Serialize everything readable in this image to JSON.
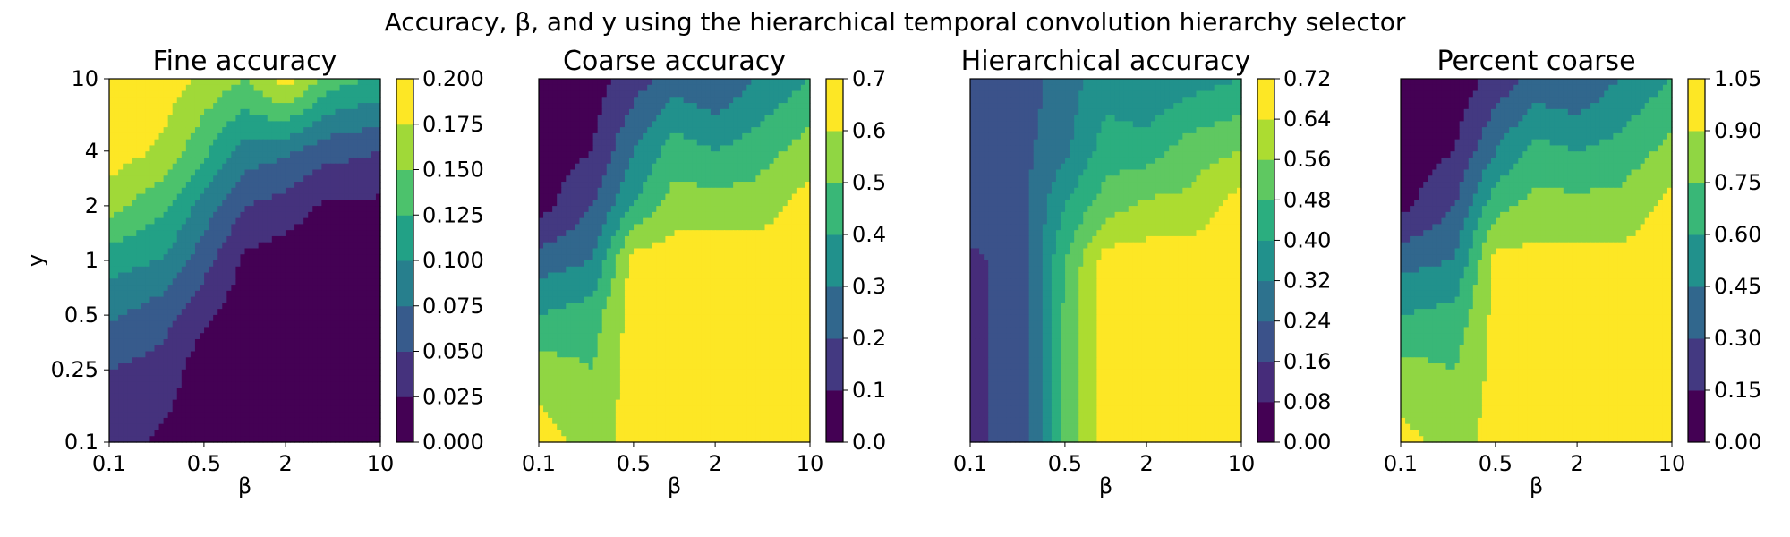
{
  "figure_title": "Accuracy, β, and y using the hierarchical temporal convolution hierarchy selector",
  "chart_data": [
    {
      "type": "heatmap",
      "subtype": "filled-contour",
      "title": "Fine accuracy",
      "xlabel": "β",
      "ylabel": "y",
      "x": [
        0.1,
        0.25,
        0.5,
        1,
        2,
        4,
        10
      ],
      "y": [
        0.1,
        0.25,
        0.5,
        1,
        2,
        4,
        10
      ],
      "xticks": [
        "0.1",
        "0.5",
        "2",
        "10"
      ],
      "yticks": [
        "0.1",
        "0.25",
        "0.5",
        "1",
        "2",
        "4",
        "10"
      ],
      "levels": [
        0.0,
        0.025,
        0.05,
        0.075,
        0.1,
        0.125,
        0.15,
        0.175,
        0.2
      ],
      "colorbar_ticks": [
        "0.000",
        "0.025",
        "0.050",
        "0.075",
        "0.100",
        "0.125",
        "0.150",
        "0.175",
        "0.200"
      ],
      "z": [
        [
          0.04,
          0.02,
          0.01,
          0.01,
          0.01,
          0.01,
          0.01
        ],
        [
          0.05,
          0.04,
          0.01,
          0.01,
          0.01,
          0.01,
          0.01
        ],
        [
          0.08,
          0.06,
          0.03,
          0.01,
          0.01,
          0.01,
          0.01
        ],
        [
          0.11,
          0.1,
          0.06,
          0.02,
          0.01,
          0.01,
          0.01
        ],
        [
          0.16,
          0.13,
          0.09,
          0.05,
          0.04,
          0.02,
          0.02
        ],
        [
          0.19,
          0.17,
          0.13,
          0.09,
          0.08,
          0.06,
          0.05
        ],
        [
          0.19,
          0.19,
          0.17,
          0.15,
          0.19,
          0.14,
          0.12
        ]
      ]
    },
    {
      "type": "heatmap",
      "subtype": "filled-contour",
      "title": "Coarse accuracy",
      "xlabel": "β",
      "ylabel": "",
      "x": [
        0.1,
        0.25,
        0.5,
        1,
        2,
        4,
        10
      ],
      "y": [
        0.1,
        0.25,
        0.5,
        1,
        2,
        4,
        10
      ],
      "xticks": [
        "0.1",
        "0.5",
        "2",
        "10"
      ],
      "yticks": [],
      "levels": [
        0.0,
        0.1,
        0.2,
        0.3,
        0.4,
        0.5,
        0.6,
        0.7
      ],
      "colorbar_ticks": [
        "0.0",
        "0.1",
        "0.2",
        "0.3",
        "0.4",
        "0.5",
        "0.6",
        "0.7"
      ],
      "z": [
        [
          0.65,
          0.55,
          0.65,
          0.65,
          0.65,
          0.65,
          0.65
        ],
        [
          0.55,
          0.5,
          0.65,
          0.65,
          0.65,
          0.65,
          0.65
        ],
        [
          0.4,
          0.45,
          0.65,
          0.65,
          0.65,
          0.65,
          0.65
        ],
        [
          0.25,
          0.3,
          0.65,
          0.65,
          0.65,
          0.65,
          0.65
        ],
        [
          0.05,
          0.2,
          0.4,
          0.55,
          0.55,
          0.55,
          0.65
        ],
        [
          0.05,
          0.1,
          0.3,
          0.45,
          0.4,
          0.45,
          0.55
        ],
        [
          0.05,
          0.05,
          0.15,
          0.25,
          0.2,
          0.3,
          0.4
        ]
      ]
    },
    {
      "type": "heatmap",
      "subtype": "filled-contour",
      "title": "Hierarchical accuracy",
      "xlabel": "β",
      "ylabel": "",
      "x": [
        0.1,
        0.25,
        0.5,
        1,
        2,
        4,
        10
      ],
      "y": [
        0.1,
        0.25,
        0.5,
        1,
        2,
        4,
        10
      ],
      "xticks": [
        "0.1",
        "0.5",
        "2",
        "10"
      ],
      "yticks": [],
      "levels": [
        0.0,
        0.08,
        0.16,
        0.24,
        0.32,
        0.4,
        0.48,
        0.56,
        0.64,
        0.72
      ],
      "colorbar_ticks": [
        "0.00",
        "0.08",
        "0.16",
        "0.24",
        "0.32",
        "0.40",
        "0.48",
        "0.56",
        "0.64",
        "0.72"
      ],
      "z": [
        [
          0.14,
          0.2,
          0.5,
          0.68,
          0.68,
          0.68,
          0.68
        ],
        [
          0.14,
          0.2,
          0.5,
          0.68,
          0.68,
          0.68,
          0.68
        ],
        [
          0.14,
          0.2,
          0.5,
          0.68,
          0.68,
          0.68,
          0.68
        ],
        [
          0.14,
          0.2,
          0.48,
          0.68,
          0.68,
          0.68,
          0.68
        ],
        [
          0.22,
          0.22,
          0.4,
          0.52,
          0.58,
          0.58,
          0.68
        ],
        [
          0.22,
          0.22,
          0.3,
          0.44,
          0.44,
          0.52,
          0.56
        ],
        [
          0.2,
          0.2,
          0.28,
          0.36,
          0.32,
          0.36,
          0.4
        ]
      ]
    },
    {
      "type": "heatmap",
      "subtype": "filled-contour",
      "title": "Percent coarse",
      "xlabel": "β",
      "ylabel": "",
      "x": [
        0.1,
        0.25,
        0.5,
        1,
        2,
        4,
        10
      ],
      "y": [
        0.1,
        0.25,
        0.5,
        1,
        2,
        4,
        10
      ],
      "xticks": [
        "0.1",
        "0.5",
        "2",
        "10"
      ],
      "yticks": [],
      "levels": [
        0.0,
        0.15,
        0.3,
        0.45,
        0.6,
        0.75,
        0.9,
        1.05
      ],
      "colorbar_ticks": [
        "0.00",
        "0.15",
        "0.30",
        "0.45",
        "0.60",
        "0.75",
        "0.90",
        "1.05"
      ],
      "z": [
        [
          0.95,
          0.85,
          0.95,
          0.95,
          0.95,
          0.95,
          0.95
        ],
        [
          0.8,
          0.75,
          0.95,
          0.95,
          0.95,
          0.95,
          0.95
        ],
        [
          0.6,
          0.65,
          0.95,
          0.95,
          0.95,
          0.95,
          0.95
        ],
        [
          0.4,
          0.45,
          0.95,
          0.95,
          0.95,
          0.95,
          0.95
        ],
        [
          0.1,
          0.3,
          0.7,
          0.8,
          0.8,
          0.8,
          0.95
        ],
        [
          0.05,
          0.15,
          0.45,
          0.65,
          0.6,
          0.65,
          0.8
        ],
        [
          0.05,
          0.05,
          0.2,
          0.35,
          0.3,
          0.45,
          0.6
        ]
      ]
    }
  ]
}
